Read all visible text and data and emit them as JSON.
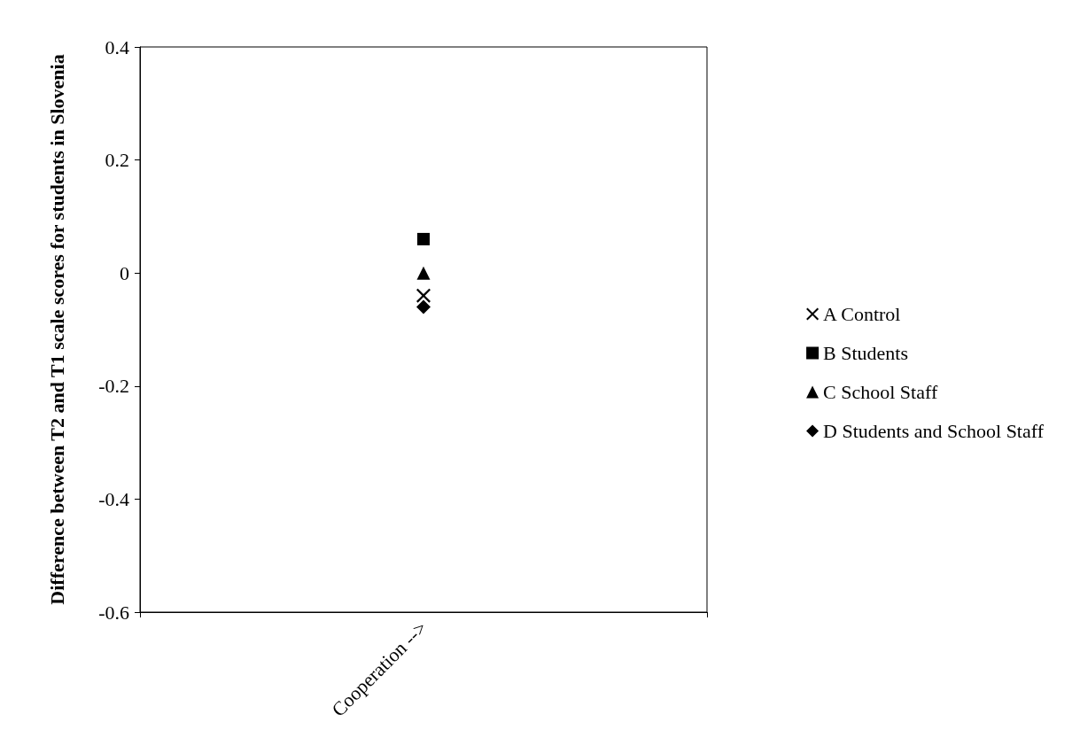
{
  "chart_data": {
    "type": "scatter",
    "ylabel": "Difference between T2 and T1 scale scores for students in Slovenia",
    "categories": [
      "Cooperation -->"
    ],
    "series": [
      {
        "name": "A Control",
        "color": "#000000",
        "marker": "cross",
        "values": [
          -0.04
        ]
      },
      {
        "name": "B Students",
        "color": "#000000",
        "marker": "square",
        "values": [
          0.06
        ]
      },
      {
        "name": "C School Staff",
        "color": "#000000",
        "marker": "triangle",
        "values": [
          0.0
        ]
      },
      {
        "name": "D Students and School Staff",
        "color": "#000000",
        "marker": "diamond",
        "values": [
          -0.06
        ]
      }
    ],
    "ylim": [
      -0.6,
      0.4
    ],
    "yticks": [
      -0.6,
      -0.4,
      -0.2,
      0,
      0.2,
      0.4
    ],
    "grid": false,
    "legend": "right"
  }
}
